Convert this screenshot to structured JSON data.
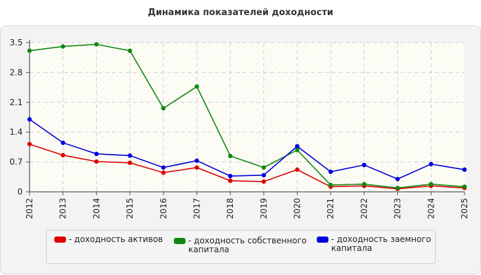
{
  "chart_data": {
    "type": "line",
    "title": "Динамика показателей доходности",
    "categories": [
      "2012",
      "2013",
      "2014",
      "2015",
      "2016",
      "2017",
      "2018",
      "2019",
      "2020",
      "2021",
      "2022",
      "2023",
      "2024",
      "2025"
    ],
    "y_ticks": [
      "0",
      "0.7",
      "1.4",
      "2.1",
      "2.8",
      "3.5"
    ],
    "ylim": [
      0,
      3.5
    ],
    "grid": true,
    "legend_position": "bottom",
    "series": [
      {
        "name": "- доходность активов",
        "color": "#dd0000",
        "values": [
          1.12,
          0.86,
          0.71,
          0.68,
          0.45,
          0.57,
          0.26,
          0.24,
          0.52,
          0.12,
          0.14,
          0.07,
          0.14,
          0.09
        ]
      },
      {
        "name": "- доходность собственного\nкапитала",
        "color": "#118811",
        "values": [
          3.31,
          3.41,
          3.46,
          3.31,
          1.96,
          2.47,
          0.84,
          0.57,
          0.98,
          0.16,
          0.18,
          0.09,
          0.18,
          0.12
        ]
      },
      {
        "name": "- доходность заемного\nкапитала",
        "color": "#0000dd",
        "values": [
          1.7,
          1.15,
          0.89,
          0.85,
          0.57,
          0.73,
          0.37,
          0.39,
          1.07,
          0.47,
          0.63,
          0.3,
          0.65,
          0.52
        ]
      }
    ]
  }
}
